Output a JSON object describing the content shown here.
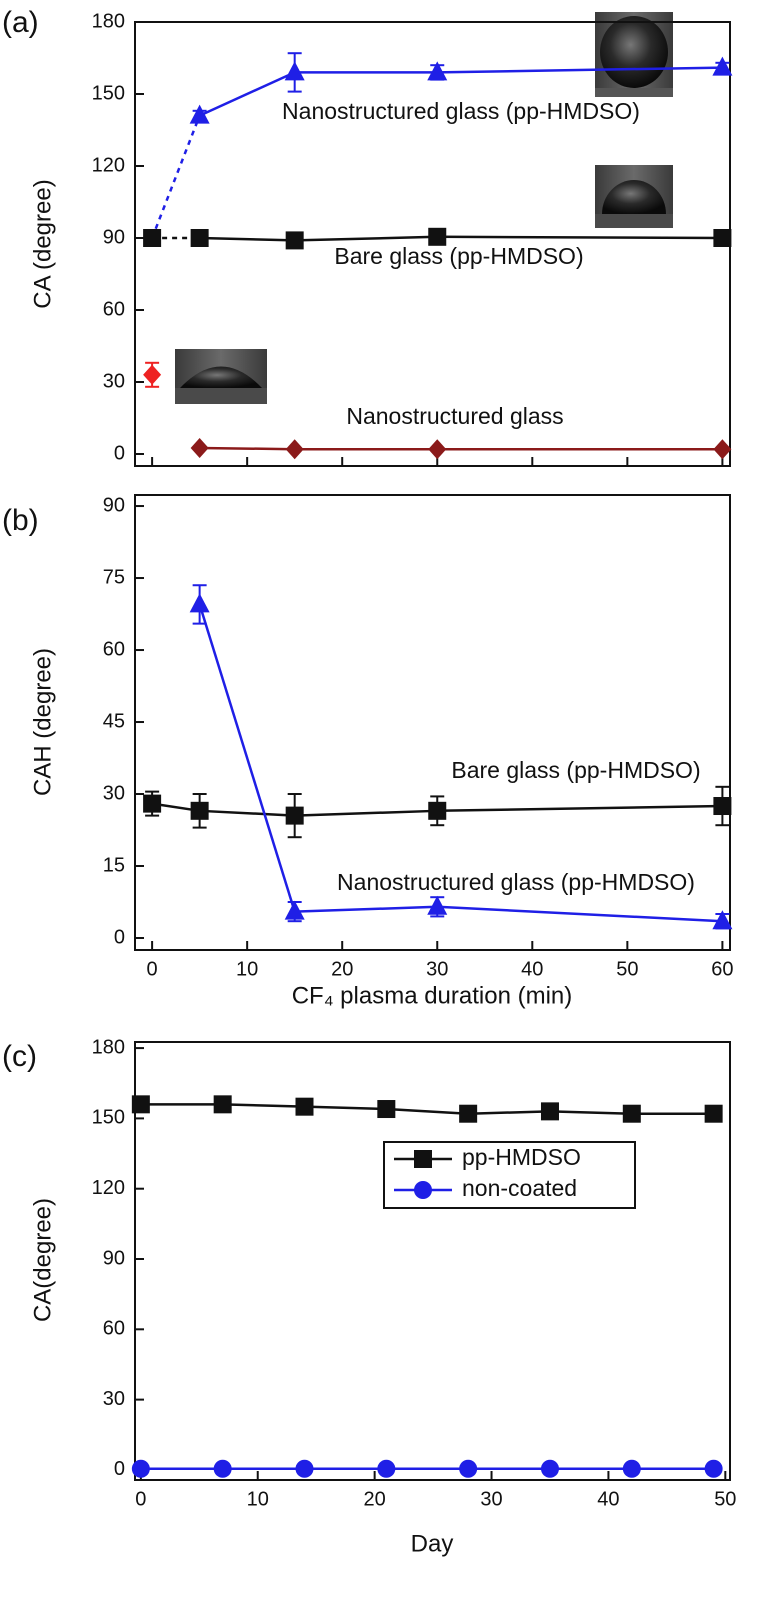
{
  "chart_data": [
    {
      "type": "line",
      "panel_label": "(a)",
      "ylabel": "CA (degree)",
      "xlim": [
        -1.8,
        60.8
      ],
      "xticks": [
        0,
        10,
        20,
        30,
        40,
        50,
        60
      ],
      "show_xtick_labels": false,
      "ylim": [
        -5,
        180
      ],
      "yticks": [
        0,
        30,
        60,
        90,
        120,
        150,
        180
      ],
      "series": [
        {
          "name": "Nanostructured glass (pp-HMDSO)",
          "color": "#1f1fe6",
          "marker": "triangle",
          "x": [
            5,
            15,
            30,
            60
          ],
          "values": [
            141,
            159,
            159,
            161
          ],
          "errors": [
            2,
            8,
            3,
            2
          ],
          "dashed_link_from_series": 1
        },
        {
          "name": "Bare glass (pp-HMDSO)",
          "color": "#111111",
          "marker": "square",
          "x": [
            0,
            5,
            15,
            30,
            60
          ],
          "values": [
            90,
            90,
            89,
            90.5,
            90
          ],
          "dashed_segments": [
            0
          ]
        },
        {
          "color": "#ee2222",
          "marker": "diamond",
          "x": [
            0
          ],
          "values": [
            33
          ],
          "errors": [
            5
          ]
        },
        {
          "name": "Nanostructured glass",
          "color": "#8b1a1a",
          "marker": "diamond",
          "x": [
            5,
            15,
            30,
            60
          ],
          "values": [
            2.5,
            2,
            2,
            2
          ]
        }
      ]
    },
    {
      "type": "line",
      "panel_label": "(b)",
      "ylabel": "CAH (degree)",
      "xlabel": "CF₄ plasma duration (min)",
      "xlim": [
        -1.8,
        60.8
      ],
      "xticks": [
        0,
        10,
        20,
        30,
        40,
        50,
        60
      ],
      "ylim": [
        -2.5,
        92.3
      ],
      "yticks": [
        0,
        15,
        30,
        45,
        60,
        75,
        90
      ],
      "series": [
        {
          "name": "Bare glass (pp-HMDSO)",
          "color": "#111111",
          "marker": "square",
          "x": [
            0,
            5,
            15,
            30,
            60
          ],
          "values": [
            28,
            26.5,
            25.5,
            26.5,
            27.5
          ],
          "errors": [
            2.5,
            3.5,
            4.5,
            3,
            4
          ]
        },
        {
          "name": "Nanostructured glass (pp-HMDSO)",
          "color": "#1f1fe6",
          "marker": "triangle",
          "x": [
            5,
            15,
            30,
            60
          ],
          "values": [
            69.5,
            5.5,
            6.5,
            3.5
          ],
          "errors": [
            4,
            2,
            2,
            1.5
          ]
        }
      ]
    },
    {
      "type": "line",
      "panel_label": "(c)",
      "ylabel": "CA(degree)",
      "xlabel": "Day",
      "xlim": [
        -0.5,
        50.4
      ],
      "xticks": [
        0,
        10,
        20,
        30,
        40,
        50
      ],
      "ylim": [
        -4.3,
        182.6
      ],
      "yticks": [
        0,
        30,
        60,
        90,
        120,
        150,
        180
      ],
      "legend": "upper right",
      "series": [
        {
          "name": "pp-HMDSO",
          "color": "#111111",
          "marker": "square",
          "x": [
            0,
            7,
            14,
            21,
            28,
            35,
            42,
            49
          ],
          "values": [
            156,
            156,
            155,
            154,
            152,
            153,
            152,
            152
          ]
        },
        {
          "name": "non-coated",
          "color": "#1f1fe6",
          "marker": "circle",
          "x": [
            0,
            7,
            14,
            21,
            28,
            35,
            42,
            49
          ],
          "values": [
            0.5,
            0.5,
            0.5,
            0.5,
            0.5,
            0.5,
            0.5,
            0.5
          ]
        }
      ]
    }
  ]
}
